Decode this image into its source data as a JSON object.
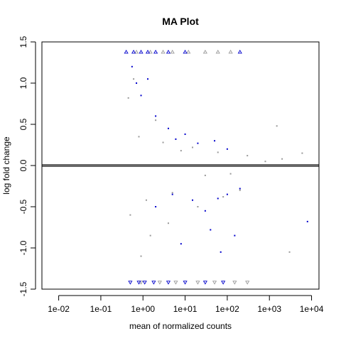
{
  "chart_data": {
    "type": "scatter",
    "title": "MA Plot",
    "xlabel": "mean of normalized counts",
    "ylabel": "log fold change",
    "x_scale": "log10",
    "xlim": [
      0.004,
      15000
    ],
    "ylim": [
      -1.5,
      1.5
    ],
    "x_ticks": [
      {
        "value": 0.01,
        "label": "1e-02"
      },
      {
        "value": 0.1,
        "label": "1e-01"
      },
      {
        "value": 1,
        "label": "1e+00"
      },
      {
        "value": 10,
        "label": "1e+01"
      },
      {
        "value": 100,
        "label": "1e+02"
      },
      {
        "value": 1000,
        "label": "1e+03"
      },
      {
        "value": 10000,
        "label": "1e+04"
      }
    ],
    "y_ticks": [
      {
        "value": -1.5,
        "label": "-1.5"
      },
      {
        "value": -1.0,
        "label": "-1.0"
      },
      {
        "value": -0.5,
        "label": "-0.5"
      },
      {
        "value": 0.0,
        "label": "0.0"
      },
      {
        "value": 0.5,
        "label": "0.5"
      },
      {
        "value": 1.0,
        "label": "1.0"
      },
      {
        "value": 1.5,
        "label": "1.5"
      }
    ],
    "reference_line": {
      "y": 0,
      "color": "#666666"
    },
    "series": [
      {
        "color": "#999999",
        "marker": "point",
        "points": [
          [
            0.45,
            0.82
          ],
          [
            0.6,
            1.05
          ],
          [
            0.8,
            0.35
          ],
          [
            1.2,
            -0.42
          ],
          [
            2,
            0.55
          ],
          [
            3,
            0.28
          ],
          [
            5,
            -0.33
          ],
          [
            8,
            0.18
          ],
          [
            15,
            0.22
          ],
          [
            30,
            -0.12
          ],
          [
            60,
            0.16
          ],
          [
            120,
            -0.1
          ],
          [
            300,
            0.12
          ],
          [
            800,
            0.05
          ],
          [
            2000,
            0.08
          ],
          [
            6000,
            0.15
          ],
          [
            0.5,
            -0.6
          ],
          [
            0.9,
            -1.1
          ],
          [
            1.5,
            -0.85
          ],
          [
            4,
            -0.7
          ],
          [
            20,
            -0.5
          ],
          [
            80,
            -0.38
          ],
          [
            200,
            -0.3
          ],
          [
            1500,
            0.48
          ],
          [
            3000,
            -1.05
          ]
        ]
      },
      {
        "color": "#0000cc",
        "marker": "point",
        "points": [
          [
            0.55,
            1.2
          ],
          [
            0.7,
            1.0
          ],
          [
            0.9,
            0.85
          ],
          [
            1.3,
            1.05
          ],
          [
            2,
            0.6
          ],
          [
            4,
            0.45
          ],
          [
            6,
            0.32
          ],
          [
            10,
            0.38
          ],
          [
            20,
            0.27
          ],
          [
            50,
            0.3
          ],
          [
            100,
            0.2
          ],
          [
            2,
            -0.5
          ],
          [
            5,
            -0.35
          ],
          [
            15,
            -0.42
          ],
          [
            30,
            -0.55
          ],
          [
            60,
            -0.4
          ],
          [
            100,
            -0.35
          ],
          [
            200,
            -0.28
          ],
          [
            8,
            -0.95
          ],
          [
            40,
            -0.78
          ],
          [
            70,
            -1.05
          ],
          [
            150,
            -0.85
          ],
          [
            8000,
            -0.68
          ]
        ]
      },
      {
        "color": "#999999",
        "marker": "triangle-up",
        "points": [
          [
            0.7,
            1.38
          ],
          [
            1.5,
            1.38
          ],
          [
            3,
            1.38
          ],
          [
            5,
            1.38
          ],
          [
            12,
            1.38
          ],
          [
            30,
            1.38
          ],
          [
            60,
            1.38
          ],
          [
            120,
            1.38
          ],
          [
            0.9,
            -1.42
          ],
          [
            2.5,
            -1.42
          ],
          [
            6,
            -1.42
          ],
          [
            20,
            -1.42
          ],
          [
            50,
            -1.42
          ],
          [
            150,
            -1.42
          ],
          [
            300,
            -1.42
          ]
        ]
      },
      {
        "color": "#0000cc",
        "marker": "triangle-up",
        "points": [
          [
            0.4,
            1.38
          ],
          [
            0.6,
            1.38
          ],
          [
            0.9,
            1.38
          ],
          [
            1.3,
            1.38
          ],
          [
            2,
            1.38
          ],
          [
            4,
            1.38
          ],
          [
            10,
            1.38
          ],
          [
            200,
            1.38
          ],
          [
            0.5,
            -1.42
          ],
          [
            0.8,
            -1.42
          ],
          [
            1.1,
            -1.42
          ],
          [
            1.8,
            -1.42
          ],
          [
            4,
            -1.42
          ],
          [
            10,
            -1.42
          ],
          [
            30,
            -1.42
          ],
          [
            80,
            -1.42
          ]
        ]
      }
    ]
  }
}
